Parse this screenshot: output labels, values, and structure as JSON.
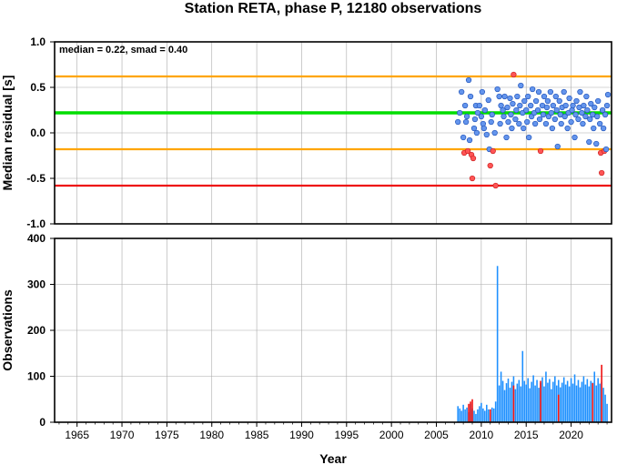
{
  "chart_data": [
    {
      "type": "scatter",
      "title": "Station RETA, phase P, 12180 observations",
      "ylabel": "Median residual [s]",
      "annotation": "median = 0.22, smad = 0.40",
      "xlim": [
        1962.5,
        2024.5
      ],
      "ylim": [
        -1.0,
        1.0
      ],
      "yticks": [
        "1.0",
        "0.5",
        "0.0",
        "-0.5",
        "-1.0"
      ],
      "ytick_values": [
        1.0,
        0.5,
        0.0,
        -0.5,
        -1.0
      ],
      "grid": true,
      "reference_lines": [
        {
          "name": "median",
          "value": 0.22,
          "color": "#00dd00"
        },
        {
          "name": "upper bound",
          "value": 0.62,
          "color": "#ffa500"
        },
        {
          "name": "lower bound",
          "value": -0.18,
          "color": "#ffa500"
        },
        {
          "name": "outlier limit",
          "value": -0.58,
          "color": "#ee1111"
        }
      ],
      "inlier_color": "#6495ed",
      "outlier_color": "#ff5555",
      "points": [
        [
          2007.4,
          0.12
        ],
        [
          2007.6,
          0.22
        ],
        [
          2007.8,
          0.45
        ],
        [
          2008.0,
          -0.05
        ],
        [
          2008.1,
          -0.22
        ],
        [
          2008.2,
          0.3
        ],
        [
          2008.3,
          0.12
        ],
        [
          2008.4,
          0.18
        ],
        [
          2008.5,
          -0.2
        ],
        [
          2008.6,
          0.58
        ],
        [
          2008.7,
          -0.08
        ],
        [
          2008.8,
          0.4
        ],
        [
          2008.9,
          -0.24
        ],
        [
          2009.0,
          -0.5
        ],
        [
          2009.1,
          -0.28
        ],
        [
          2009.2,
          0.05
        ],
        [
          2009.3,
          0.15
        ],
        [
          2009.4,
          0.3
        ],
        [
          2009.5,
          0.0
        ],
        [
          2009.6,
          0.22
        ],
        [
          2009.8,
          0.3
        ],
        [
          2010.0,
          0.18
        ],
        [
          2010.1,
          0.45
        ],
        [
          2010.2,
          0.1
        ],
        [
          2010.3,
          0.05
        ],
        [
          2010.4,
          0.25
        ],
        [
          2010.6,
          -0.02
        ],
        [
          2010.8,
          0.36
        ],
        [
          2010.9,
          -0.18
        ],
        [
          2011.0,
          -0.36
        ],
        [
          2011.1,
          0.12
        ],
        [
          2011.2,
          0.2
        ],
        [
          2011.3,
          -0.2
        ],
        [
          2011.5,
          0.0
        ],
        [
          2011.6,
          -0.58
        ],
        [
          2011.8,
          0.48
        ],
        [
          2012.0,
          0.4
        ],
        [
          2012.1,
          0.1
        ],
        [
          2012.2,
          0.3
        ],
        [
          2012.4,
          0.25
        ],
        [
          2012.5,
          0.18
        ],
        [
          2012.6,
          0.4
        ],
        [
          2012.8,
          -0.05
        ],
        [
          2012.9,
          0.28
        ],
        [
          2013.0,
          0.12
        ],
        [
          2013.2,
          0.38
        ],
        [
          2013.3,
          0.2
        ],
        [
          2013.4,
          0.05
        ],
        [
          2013.5,
          0.32
        ],
        [
          2013.6,
          0.64
        ],
        [
          2013.8,
          0.15
        ],
        [
          2013.9,
          0.25
        ],
        [
          2014.0,
          0.4
        ],
        [
          2014.2,
          0.1
        ],
        [
          2014.3,
          0.3
        ],
        [
          2014.4,
          0.52
        ],
        [
          2014.6,
          0.22
        ],
        [
          2014.7,
          0.05
        ],
        [
          2014.8,
          0.35
        ],
        [
          2015.0,
          0.25
        ],
        [
          2015.1,
          0.12
        ],
        [
          2015.2,
          0.4
        ],
        [
          2015.3,
          -0.05
        ],
        [
          2015.5,
          0.3
        ],
        [
          2015.6,
          0.18
        ],
        [
          2015.7,
          0.48
        ],
        [
          2015.9,
          0.22
        ],
        [
          2016.0,
          0.1
        ],
        [
          2016.1,
          0.35
        ],
        [
          2016.3,
          0.25
        ],
        [
          2016.4,
          0.45
        ],
        [
          2016.5,
          0.15
        ],
        [
          2016.6,
          -0.2
        ],
        [
          2016.8,
          0.3
        ],
        [
          2016.9,
          0.2
        ],
        [
          2017.0,
          0.4
        ],
        [
          2017.2,
          0.1
        ],
        [
          2017.3,
          0.28
        ],
        [
          2017.4,
          0.35
        ],
        [
          2017.5,
          0.18
        ],
        [
          2017.7,
          0.45
        ],
        [
          2017.8,
          0.22
        ],
        [
          2017.9,
          0.05
        ],
        [
          2018.0,
          0.3
        ],
        [
          2018.2,
          0.15
        ],
        [
          2018.3,
          0.4
        ],
        [
          2018.4,
          0.25
        ],
        [
          2018.5,
          -0.15
        ],
        [
          2018.7,
          0.35
        ],
        [
          2018.8,
          0.2
        ],
        [
          2018.9,
          0.1
        ],
        [
          2019.0,
          0.28
        ],
        [
          2019.2,
          0.45
        ],
        [
          2019.3,
          0.18
        ],
        [
          2019.4,
          0.3
        ],
        [
          2019.6,
          0.05
        ],
        [
          2019.7,
          0.22
        ],
        [
          2019.8,
          0.38
        ],
        [
          2020.0,
          0.12
        ],
        [
          2020.1,
          0.25
        ],
        [
          2020.2,
          0.3
        ],
        [
          2020.4,
          -0.05
        ],
        [
          2020.5,
          0.2
        ],
        [
          2020.6,
          0.35
        ],
        [
          2020.8,
          0.15
        ],
        [
          2020.9,
          0.28
        ],
        [
          2021.0,
          0.45
        ],
        [
          2021.2,
          0.22
        ],
        [
          2021.3,
          0.1
        ],
        [
          2021.4,
          0.3
        ],
        [
          2021.6,
          0.18
        ],
        [
          2021.7,
          0.4
        ],
        [
          2021.8,
          0.25
        ],
        [
          2022.0,
          -0.1
        ],
        [
          2022.1,
          0.15
        ],
        [
          2022.2,
          0.32
        ],
        [
          2022.4,
          0.2
        ],
        [
          2022.5,
          0.05
        ],
        [
          2022.6,
          0.28
        ],
        [
          2022.8,
          -0.12
        ],
        [
          2022.9,
          0.18
        ],
        [
          2023.0,
          0.35
        ],
        [
          2023.2,
          0.1
        ],
        [
          2023.3,
          -0.22
        ],
        [
          2023.4,
          -0.44
        ],
        [
          2023.5,
          0.25
        ],
        [
          2023.6,
          0.05
        ],
        [
          2023.7,
          -0.2
        ],
        [
          2023.8,
          0.2
        ],
        [
          2023.9,
          -0.18
        ],
        [
          2024.0,
          0.3
        ],
        [
          2024.1,
          0.42
        ]
      ]
    },
    {
      "type": "bar",
      "xlabel": "Year",
      "ylabel": "Observations",
      "xlim": [
        1962.5,
        2024.5
      ],
      "ylim": [
        0,
        400
      ],
      "yticks": [
        "400",
        "300",
        "200",
        "100",
        "0"
      ],
      "ytick_values": [
        400,
        300,
        200,
        100,
        0
      ],
      "xticks": [
        "1965",
        "1970",
        "1975",
        "1980",
        "1985",
        "1990",
        "1995",
        "2000",
        "2005",
        "2010",
        "2015",
        "2020"
      ],
      "xtick_values": [
        1965,
        1970,
        1975,
        1980,
        1985,
        1990,
        1995,
        2000,
        2005,
        2010,
        2015,
        2020
      ],
      "grid": true,
      "bar_color": "#1e90ff",
      "highlight_color": "#ee1111",
      "bars": [
        [
          2007.4,
          35
        ],
        [
          2007.6,
          30
        ],
        [
          2007.8,
          25
        ],
        [
          2008.0,
          38
        ],
        [
          2008.2,
          28
        ],
        [
          2008.4,
          32
        ],
        [
          2008.6,
          22
        ],
        [
          2008.8,
          40
        ],
        [
          2009.0,
          30
        ],
        [
          2009.2,
          25
        ],
        [
          2009.4,
          18
        ],
        [
          2009.6,
          28
        ],
        [
          2009.8,
          35
        ],
        [
          2010.0,
          42
        ],
        [
          2010.2,
          30
        ],
        [
          2010.4,
          25
        ],
        [
          2010.6,
          38
        ],
        [
          2010.8,
          28
        ],
        [
          2011.0,
          20
        ],
        [
          2011.2,
          32
        ],
        [
          2011.4,
          30
        ],
        [
          2011.6,
          45
        ],
        [
          2011.8,
          340
        ],
        [
          2012.0,
          80
        ],
        [
          2012.2,
          110
        ],
        [
          2012.4,
          90
        ],
        [
          2012.6,
          70
        ],
        [
          2012.8,
          85
        ],
        [
          2013.0,
          95
        ],
        [
          2013.2,
          75
        ],
        [
          2013.4,
          88
        ],
        [
          2013.6,
          100
        ],
        [
          2013.8,
          72
        ],
        [
          2014.0,
          84
        ],
        [
          2014.2,
          92
        ],
        [
          2014.4,
          78
        ],
        [
          2014.6,
          155
        ],
        [
          2014.8,
          90
        ],
        [
          2015.0,
          82
        ],
        [
          2015.2,
          96
        ],
        [
          2015.4,
          74
        ],
        [
          2015.6,
          88
        ],
        [
          2015.8,
          102
        ],
        [
          2016.0,
          80
        ],
        [
          2016.2,
          92
        ],
        [
          2016.4,
          75
        ],
        [
          2016.6,
          85
        ],
        [
          2016.8,
          98
        ],
        [
          2017.0,
          78
        ],
        [
          2017.2,
          110
        ],
        [
          2017.4,
          86
        ],
        [
          2017.6,
          94
        ],
        [
          2017.8,
          72
        ],
        [
          2018.0,
          88
        ],
        [
          2018.2,
          100
        ],
        [
          2018.4,
          80
        ],
        [
          2018.6,
          92
        ],
        [
          2018.8,
          76
        ],
        [
          2019.0,
          86
        ],
        [
          2019.2,
          98
        ],
        [
          2019.4,
          82
        ],
        [
          2019.6,
          90
        ],
        [
          2019.8,
          78
        ],
        [
          2020.0,
          96
        ],
        [
          2020.2,
          84
        ],
        [
          2020.4,
          104
        ],
        [
          2020.6,
          80
        ],
        [
          2020.8,
          92
        ],
        [
          2021.0,
          76
        ],
        [
          2021.2,
          88
        ],
        [
          2021.4,
          100
        ],
        [
          2021.6,
          82
        ],
        [
          2021.8,
          94
        ],
        [
          2022.0,
          78
        ],
        [
          2022.2,
          90
        ],
        [
          2022.4,
          86
        ],
        [
          2022.6,
          110
        ],
        [
          2022.8,
          80
        ],
        [
          2023.0,
          96
        ],
        [
          2023.2,
          84
        ],
        [
          2023.4,
          88
        ],
        [
          2023.6,
          75
        ],
        [
          2023.8,
          60
        ],
        [
          2024.0,
          40
        ]
      ],
      "highlight_bars": [
        [
          2008.6,
          40
        ],
        [
          2008.8,
          45
        ],
        [
          2009.0,
          50
        ],
        [
          2011.0,
          28
        ],
        [
          2013.6,
          80
        ],
        [
          2016.6,
          90
        ],
        [
          2018.6,
          60
        ],
        [
          2022.4,
          85
        ],
        [
          2023.4,
          125
        ]
      ]
    }
  ]
}
